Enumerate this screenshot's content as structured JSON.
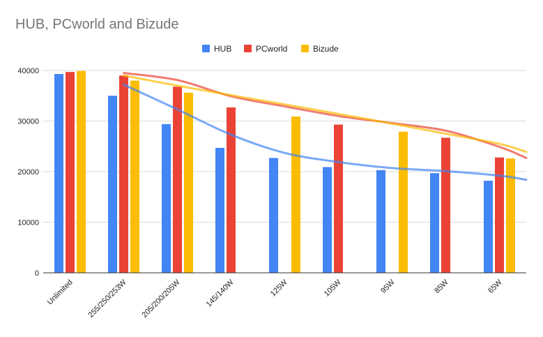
{
  "chart_data": {
    "type": "bar",
    "title": "HUB, PCworld and Bizude",
    "xlabel": "",
    "ylabel": "",
    "categories": [
      "Unlimited",
      "255/250/253W",
      "205/200/205W",
      "145/140W",
      "125W",
      "105W",
      "95W",
      "85W",
      "65W"
    ],
    "ylim": [
      0,
      40000
    ],
    "yticks": [
      0,
      10000,
      20000,
      30000,
      40000
    ],
    "ytick_labels": [
      "0",
      "10000",
      "20000",
      "30000",
      "40000"
    ],
    "grid": true,
    "legend_position": "top",
    "series": [
      {
        "name": "HUB",
        "color": "#4285F4",
        "values": [
          39300,
          35000,
          29400,
          24700,
          22700,
          20900,
          20300,
          19700,
          18200
        ],
        "trend": [
          null,
          37200,
          32300,
          27300,
          23700,
          21900,
          20700,
          20100,
          19200
        ],
        "trend_end": 18400
      },
      {
        "name": "PCworld",
        "color": "#EA4335",
        "values": [
          39700,
          39000,
          36800,
          32700,
          null,
          29300,
          null,
          26700,
          22800
        ],
        "trend": [
          null,
          39500,
          38100,
          34900,
          32900,
          31000,
          29600,
          28100,
          24900
        ],
        "trend_end": 22700
      },
      {
        "name": "Bizude",
        "color": "#FBBC04",
        "values": [
          39900,
          38000,
          35600,
          null,
          30900,
          null,
          27900,
          null,
          22600
        ],
        "trend": [
          null,
          39000,
          37000,
          35100,
          33300,
          31400,
          29500,
          27500,
          25500
        ],
        "trend_end": 23900
      }
    ]
  }
}
